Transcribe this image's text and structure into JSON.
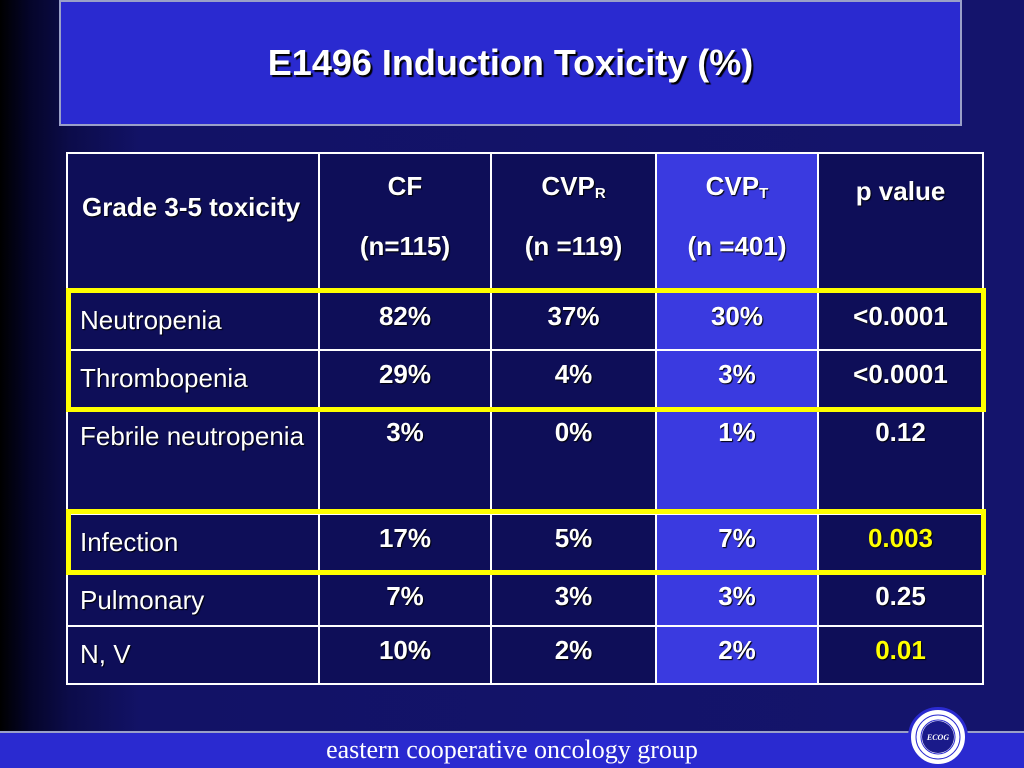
{
  "title": "E1496 Induction Toxicity (%)",
  "table": {
    "header": {
      "label": "Grade 3-5 toxicity",
      "cf": {
        "name": "CF",
        "n": "(n=115)"
      },
      "cvpr": {
        "name": "CVP",
        "sub": "R",
        "n": "(n =119)"
      },
      "cvpt": {
        "name": "CVP",
        "sub": "T",
        "n": "(n =401)"
      },
      "pvalue": "p value"
    },
    "rows": [
      {
        "label": "Neutropenia",
        "cf": "82%",
        "cvpr": "37%",
        "cvpt": "30%",
        "p": "<0.0001"
      },
      {
        "label": "Thrombopenia",
        "cf": "29%",
        "cvpr": "4%",
        "cvpt": "3%",
        "p": "<0.0001"
      },
      {
        "label": "Febrile neutropenia",
        "cf": "3%",
        "cvpr": "0%",
        "cvpt": "1%",
        "p": "0.12"
      },
      {
        "label": "Infection",
        "cf": "17%",
        "cvpr": "5%",
        "cvpt": "7%",
        "p": "0.003"
      },
      {
        "label": "Pulmonary",
        "cf": "7%",
        "cvpr": "3%",
        "cvpt": "3%",
        "p": "0.25"
      },
      {
        "label": "N, V",
        "cf": "10%",
        "cvpr": "2%",
        "cvpt": "2%",
        "p": "0.01"
      }
    ]
  },
  "footer": "eastern cooperative oncology group",
  "logo": {
    "text": "ECOG",
    "ring_text": "EASTERN COOPERATIVE ONCOLOGY GROUP"
  },
  "colors": {
    "accent": "#ffff00",
    "title_bar": "#2a2ad0",
    "highlight_column": "#3a3ae0"
  }
}
